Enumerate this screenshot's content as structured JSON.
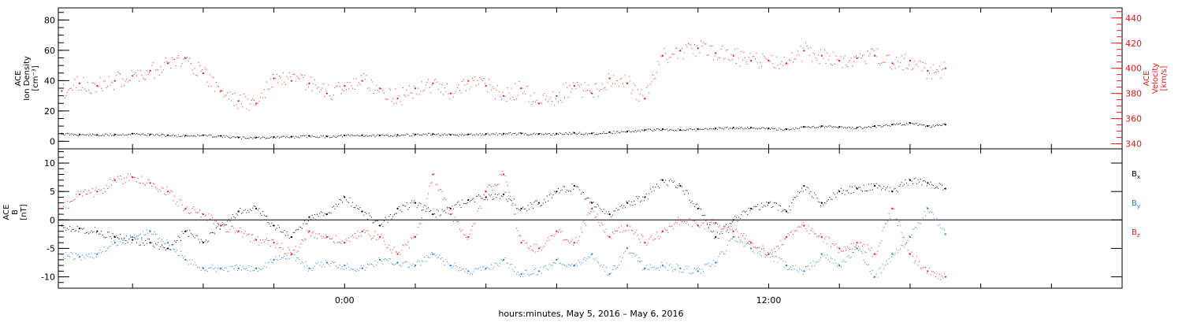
{
  "xlabel": "hours:minutes,  May  5, 2016  –  May  6, 2016",
  "colors": {
    "black": "#000000",
    "red": "#e41a1c",
    "blue": "#1f78d4"
  },
  "chart_data": [
    {
      "type": "scatter",
      "panel": "plasma",
      "ylabel_left": [
        "ACE",
        "Ion Density",
        "[cm⁻³]"
      ],
      "ylabel_right": [
        "ACE",
        "Velocity",
        "[km/s]"
      ],
      "y_ticks_left": [
        "0",
        "20",
        "40",
        "60",
        "80"
      ],
      "y_ticks_right": [
        "340",
        "360",
        "380",
        "400",
        "420",
        "440"
      ],
      "ylim_left": [
        -5,
        88
      ],
      "ylim_right": [
        336,
        448
      ],
      "x_ticks": [
        "0:00",
        "12:00"
      ],
      "xlim_hours": [
        -8.1,
        22.0
      ],
      "series": [
        {
          "color": "black",
          "axis": "left",
          "x": [
            -8.0,
            -7.5,
            -7.0,
            -6.5,
            -6.0,
            -5.5,
            -5.0,
            -4.5,
            -4.0,
            -3.5,
            -3.0,
            -2.5,
            -2.0,
            -1.5,
            -1.0,
            -0.5,
            0.0,
            0.5,
            1.0,
            1.5,
            2.0,
            2.5,
            3.0,
            3.5,
            4.0,
            4.5,
            5.0,
            5.5,
            6.0,
            6.5,
            7.0,
            7.5,
            8.0,
            8.5,
            9.0,
            9.5,
            10.0,
            10.5,
            11.0,
            11.5,
            12.0,
            12.5,
            13.0,
            13.5,
            14.0,
            14.5,
            15.0,
            15.5,
            16.0,
            16.5,
            17.0
          ],
          "y": [
            5.0,
            4.5,
            4.2,
            4.5,
            5.0,
            4.5,
            4.0,
            3.8,
            4.0,
            3.5,
            2.5,
            2.5,
            2.8,
            3.0,
            3.5,
            3.2,
            3.8,
            4.0,
            3.8,
            4.2,
            4.5,
            4.8,
            4.2,
            4.5,
            4.8,
            5.0,
            5.2,
            4.8,
            5.0,
            5.5,
            5.2,
            6.0,
            6.5,
            7.5,
            8.0,
            7.5,
            8.0,
            8.5,
            9.0,
            9.0,
            8.5,
            8.0,
            9.5,
            10.0,
            9.5,
            9.0,
            10.0,
            11.0,
            12.0,
            10.0,
            11.0
          ]
        },
        {
          "color": "red",
          "axis": "right",
          "x": [
            -8.0,
            -7.5,
            -7.0,
            -6.5,
            -6.0,
            -5.5,
            -5.0,
            -4.5,
            -4.0,
            -3.5,
            -3.0,
            -2.5,
            -2.0,
            -1.5,
            -1.0,
            -0.5,
            0.0,
            0.5,
            1.0,
            1.5,
            2.0,
            2.5,
            3.0,
            3.5,
            4.0,
            4.5,
            5.0,
            5.5,
            6.0,
            6.5,
            7.0,
            7.5,
            8.0,
            8.5,
            9.0,
            9.5,
            10.0,
            10.5,
            11.0,
            11.5,
            12.0,
            12.5,
            13.0,
            13.5,
            14.0,
            14.5,
            15.0,
            15.5,
            16.0,
            16.5,
            17.0
          ],
          "y": [
            382,
            388,
            386,
            390,
            394,
            398,
            404,
            408,
            396,
            382,
            374,
            372,
            392,
            390,
            388,
            380,
            386,
            390,
            384,
            376,
            384,
            388,
            380,
            390,
            386,
            378,
            384,
            372,
            378,
            386,
            380,
            392,
            388,
            376,
            410,
            414,
            416,
            412,
            410,
            406,
            406,
            404,
            414,
            410,
            406,
            408,
            410,
            404,
            406,
            398,
            400
          ]
        }
      ]
    },
    {
      "type": "scatter",
      "panel": "magnetic",
      "ylabel_left": [
        "ACE",
        "B",
        "[nT]"
      ],
      "y_ticks_left": [
        "-10",
        "-5",
        "0",
        "5",
        "10"
      ],
      "ylim_left": [
        -12,
        12.5
      ],
      "x_ticks": [
        "0:00",
        "12:00"
      ],
      "xlim_hours": [
        -8.1,
        22.0
      ],
      "legend": [
        {
          "label": "B",
          "sub": "x",
          "color": "black"
        },
        {
          "label": "B",
          "sub": "y",
          "color": "blue"
        },
        {
          "label": "B",
          "sub": "z",
          "color": "red"
        }
      ],
      "series": [
        {
          "name": "Bx",
          "color": "black",
          "x": [
            -8.0,
            -7.5,
            -7.0,
            -6.5,
            -6.0,
            -5.5,
            -5.0,
            -4.5,
            -4.0,
            -3.5,
            -3.0,
            -2.5,
            -2.0,
            -1.5,
            -1.0,
            -0.5,
            0.0,
            0.5,
            1.0,
            1.5,
            2.0,
            2.5,
            3.0,
            3.5,
            4.0,
            4.5,
            5.0,
            5.5,
            6.0,
            6.5,
            7.0,
            7.5,
            8.0,
            8.5,
            9.0,
            9.5,
            10.0,
            10.5,
            11.0,
            11.5,
            12.0,
            12.5,
            13.0,
            13.5,
            14.0,
            14.5,
            15.0,
            15.5,
            16.0,
            16.5,
            17.0
          ],
          "y": [
            -1.0,
            -1.5,
            -2.0,
            -3.0,
            -3.5,
            -4.0,
            -5.0,
            -2.0,
            -4.0,
            -1.0,
            1.5,
            2.0,
            -1.0,
            -3.0,
            0.5,
            1.0,
            4.0,
            1.5,
            -1.0,
            2.0,
            3.0,
            1.0,
            2.0,
            3.5,
            4.0,
            4.5,
            2.0,
            3.0,
            5.0,
            6.0,
            3.0,
            1.0,
            3.0,
            4.0,
            7.0,
            6.0,
            2.0,
            -3.0,
            0.0,
            2.0,
            3.0,
            1.5,
            6.0,
            3.0,
            5.0,
            5.5,
            6.0,
            5.0,
            7.0,
            6.5,
            5.5
          ]
        },
        {
          "name": "By",
          "color": "blue",
          "x": [
            -8.0,
            -7.5,
            -7.0,
            -6.5,
            -6.0,
            -5.5,
            -5.0,
            -4.5,
            -4.0,
            -3.5,
            -3.0,
            -2.5,
            -2.0,
            -1.5,
            -1.0,
            -0.5,
            0.0,
            0.5,
            1.0,
            1.5,
            2.0,
            2.5,
            3.0,
            3.5,
            4.0,
            4.5,
            5.0,
            5.5,
            6.0,
            6.5,
            7.0,
            7.5,
            8.0,
            8.5,
            9.0,
            9.5,
            10.0,
            10.5,
            11.0,
            11.5,
            12.0,
            12.5,
            13.0,
            13.5,
            14.0,
            14.5,
            15.0,
            15.5,
            16.0,
            16.5,
            17.0
          ],
          "y": [
            -6.0,
            -6.5,
            -6.0,
            -4.0,
            -3.0,
            -2.0,
            -4.0,
            -7.0,
            -8.5,
            -8.5,
            -8.5,
            -8.5,
            -7.0,
            -6.0,
            -8.5,
            -7.5,
            -8.0,
            -8.5,
            -7.0,
            -7.5,
            -8.0,
            -6.0,
            -8.0,
            -9.0,
            -8.5,
            -7.0,
            -9.5,
            -9.0,
            -7.0,
            -8.0,
            -6.0,
            -9.5,
            -5.0,
            -8.5,
            -8.0,
            -8.5,
            -9.0,
            -7.5,
            -3.0,
            -5.0,
            -6.0,
            -8.0,
            -9.0,
            -6.0,
            -8.0,
            -5.0,
            -10.0,
            -6.0,
            -3.0,
            2.0,
            -2.5
          ]
        },
        {
          "name": "Bz",
          "color": "red",
          "x": [
            -8.0,
            -7.5,
            -7.0,
            -6.5,
            -6.0,
            -5.5,
            -5.0,
            -4.5,
            -4.0,
            -3.5,
            -3.0,
            -2.5,
            -2.0,
            -1.5,
            -1.0,
            -0.5,
            0.0,
            0.5,
            1.0,
            1.5,
            2.0,
            2.5,
            3.0,
            3.5,
            4.0,
            4.5,
            5.0,
            5.5,
            6.0,
            6.5,
            7.0,
            7.5,
            8.0,
            8.5,
            9.0,
            9.5,
            10.0,
            10.5,
            11.0,
            11.5,
            12.0,
            12.5,
            13.0,
            13.5,
            14.0,
            14.5,
            15.0,
            15.5,
            16.0,
            16.5,
            17.0
          ],
          "y": [
            2.0,
            4.5,
            5.0,
            7.0,
            7.5,
            6.5,
            5.0,
            2.0,
            1.0,
            -1.0,
            -2.0,
            -3.5,
            -4.0,
            -6.0,
            -2.0,
            -3.0,
            -4.0,
            -2.0,
            -3.0,
            -6.0,
            -3.0,
            8.0,
            1.0,
            -3.0,
            5.0,
            8.0,
            -4.0,
            -5.0,
            -2.0,
            -4.0,
            2.0,
            -3.0,
            -1.0,
            -4.0,
            -2.0,
            0.0,
            -1.0,
            -0.5,
            -2.0,
            -4.0,
            -6.0,
            -3.0,
            -1.0,
            -3.0,
            -5.0,
            -4.0,
            -6.0,
            2.0,
            -6.0,
            -9.0,
            -10.0
          ]
        }
      ]
    }
  ]
}
